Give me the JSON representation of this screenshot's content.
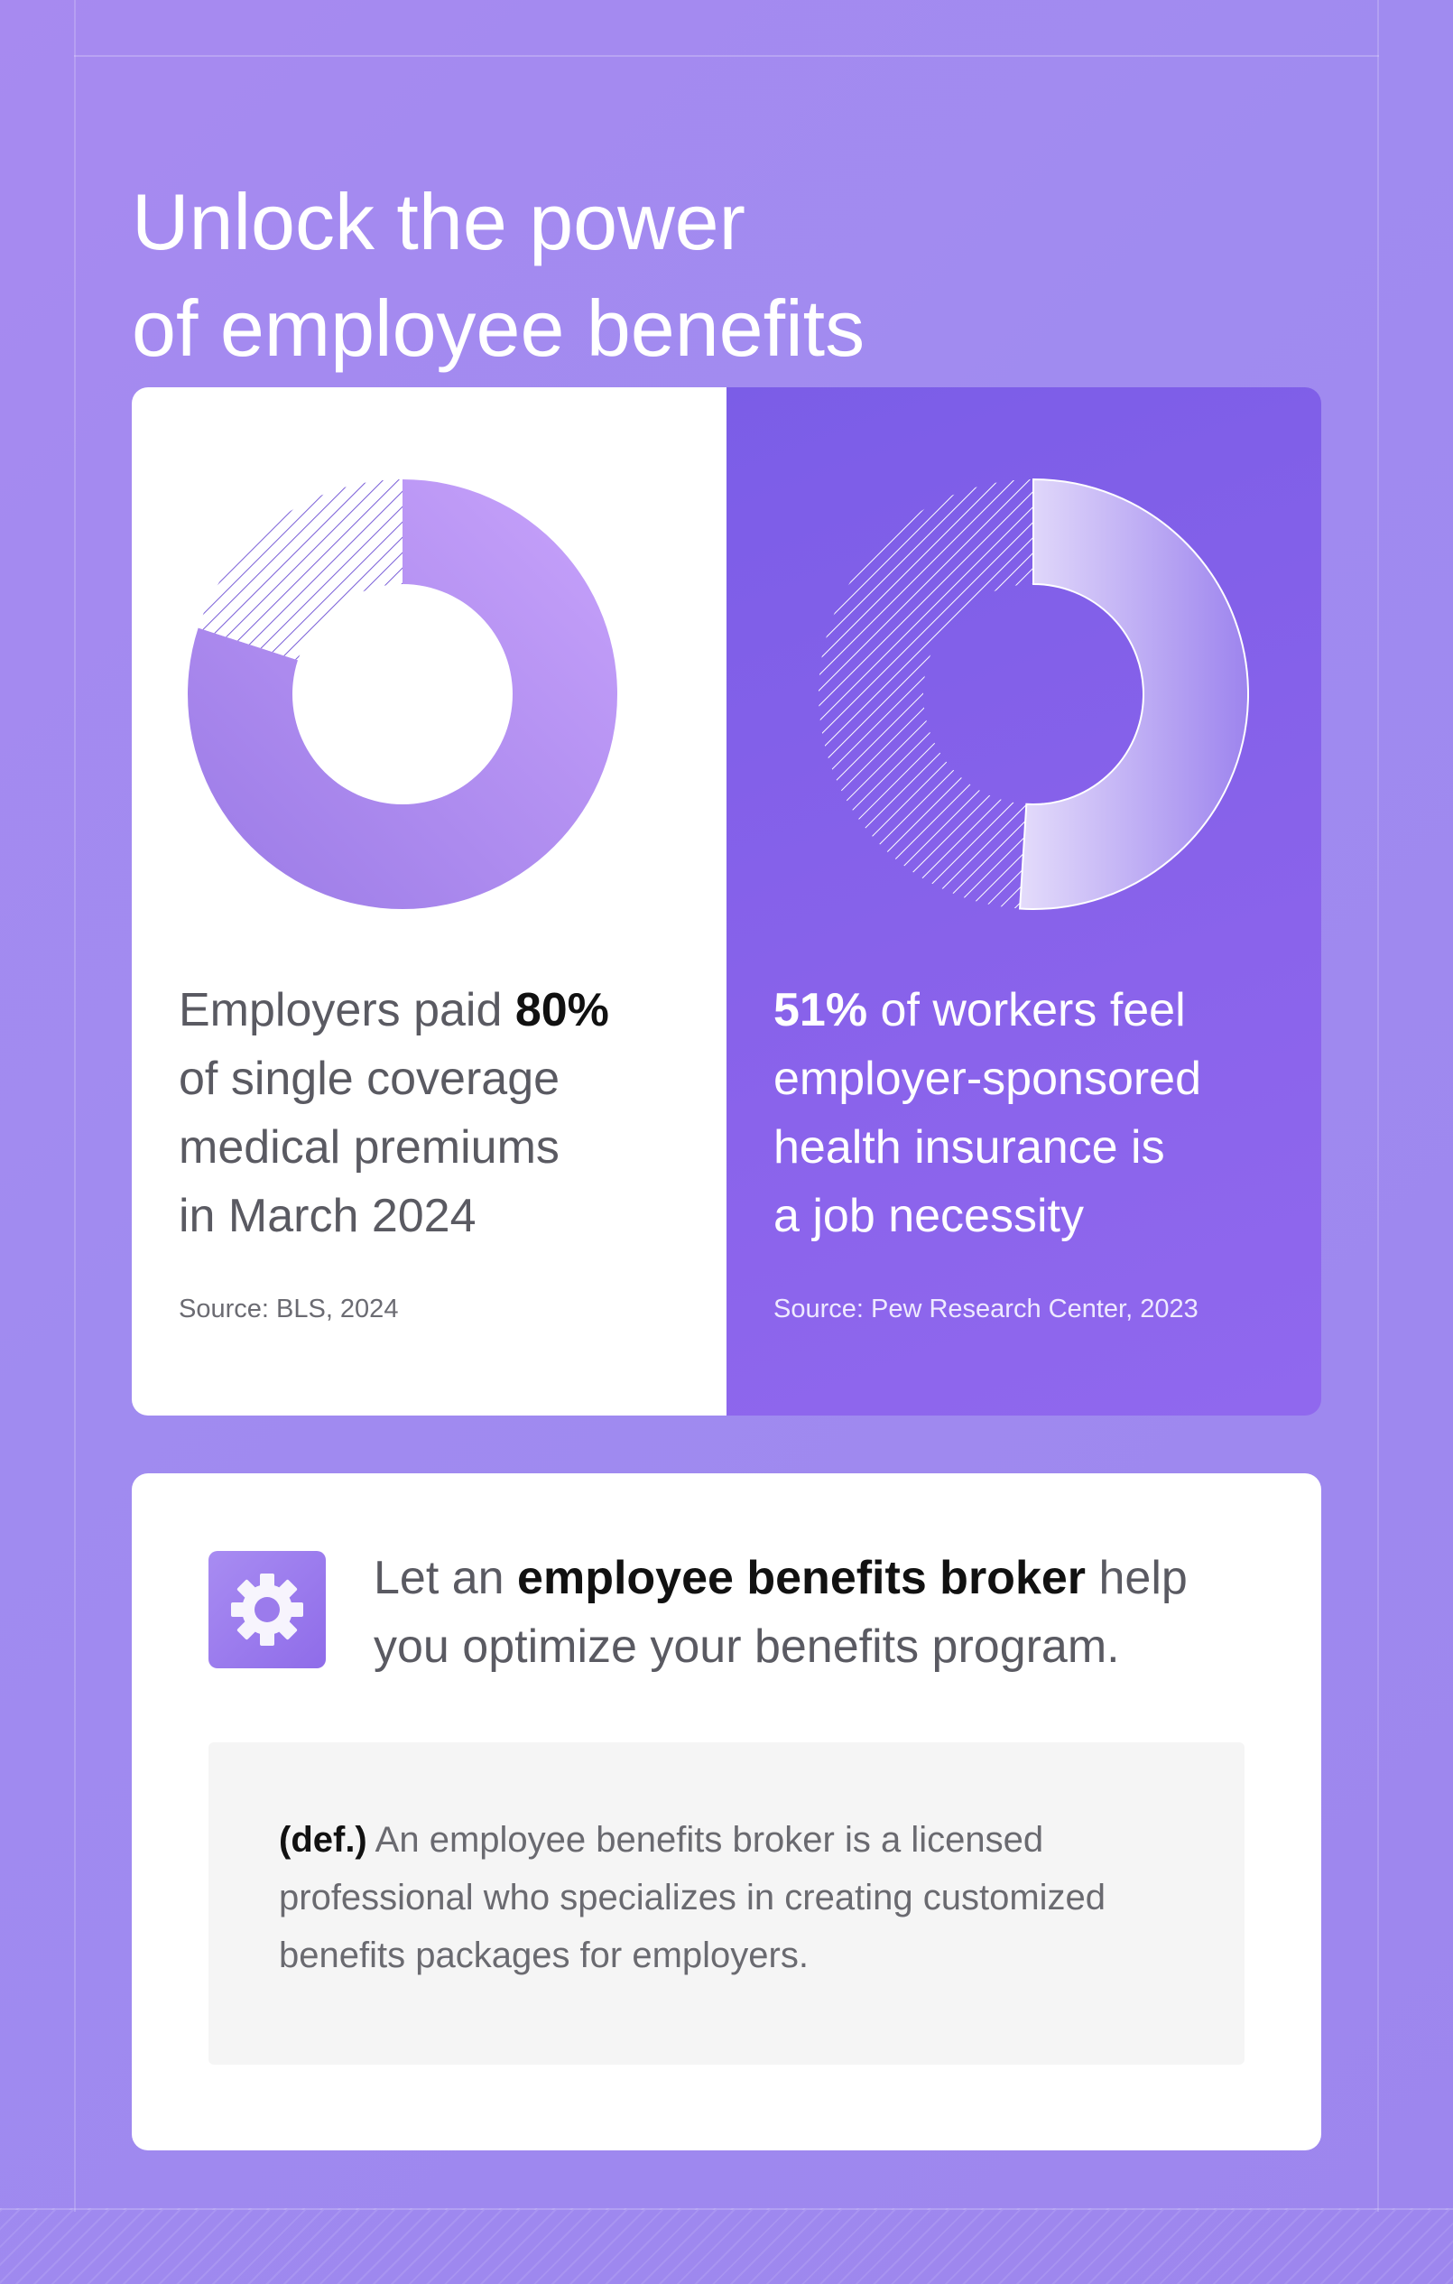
{
  "title": {
    "line1": "Unlock the power",
    "line2": "of employee benefits"
  },
  "colors": {
    "background": "#a78af0",
    "card_right": "#7b5de7",
    "accent_light": "#c9a6fa",
    "accent_dark": "#9a7ae6"
  },
  "chart_data": [
    {
      "type": "pie",
      "variant": "donut",
      "slices": [
        {
          "label": "Employers paid",
          "value": 80
        },
        {
          "label": "Remaining",
          "value": 20,
          "style": "hatched"
        }
      ],
      "caption": {
        "before": "Employers paid ",
        "highlight": "80%",
        "after_lines": [
          "of single coverage",
          "medical premiums",
          "in March 2024"
        ]
      },
      "source": "Source: BLS, 2024"
    },
    {
      "type": "pie",
      "variant": "donut",
      "slices": [
        {
          "label": "Workers who feel insurance is a job necessity",
          "value": 51
        },
        {
          "label": "Remaining",
          "value": 49,
          "style": "hatched"
        }
      ],
      "caption": {
        "highlight": "51%",
        "after": " of workers feel",
        "after_lines": [
          "employer-sponsored",
          "health insurance is",
          "a job necessity"
        ]
      },
      "source": "Source: Pew Research Center, 2023"
    }
  ],
  "broker": {
    "icon": "gear-icon",
    "text_before": "Let an ",
    "text_strong": "employee benefits broker",
    "text_after": " help",
    "text_line2": "you optimize your benefits program.",
    "definition": {
      "label": "(def.)",
      "text": " An employee benefits broker is a licensed professional who specializes in creating customized benefits packages for employers."
    }
  }
}
